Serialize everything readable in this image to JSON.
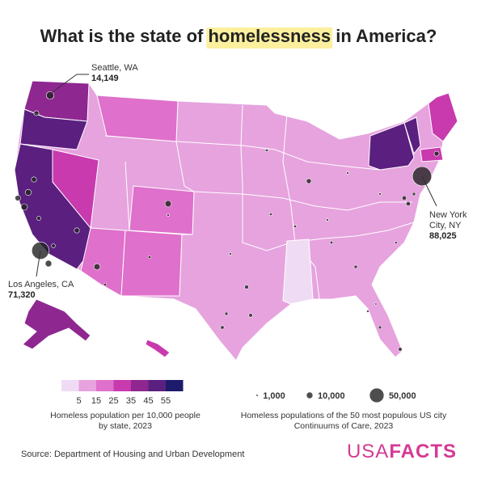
{
  "title": {
    "before": "What is the state of ",
    "highlight": "homelessness",
    "after": " in America?"
  },
  "legend_color": {
    "colors": [
      "#efdcf4",
      "#e6a3de",
      "#df70cb",
      "#c83aae",
      "#8f2790",
      "#5b1f80",
      "#1d1b6b"
    ],
    "ticks": [
      5,
      15,
      25,
      35,
      45,
      55
    ],
    "caption": "Homeless population per 10,000 people by state, 2023"
  },
  "legend_size": {
    "items": [
      {
        "value": 1000,
        "label": "1,000"
      },
      {
        "value": 10000,
        "label": "10,000"
      },
      {
        "value": 50000,
        "label": "50,000"
      }
    ],
    "caption": "Homeless populations of the 50 most populous US city Continuums of Care, 2023"
  },
  "callouts": [
    {
      "name": "Seattle, WA",
      "value": 14149,
      "label": "14,149"
    },
    {
      "name": "Los Angeles, CA",
      "value": 71320,
      "label": "71,320"
    },
    {
      "name": "New York City, NY",
      "value": 88025,
      "label": "88,025"
    }
  ],
  "other_bubbles": [
    6000,
    7500,
    9000,
    10000,
    6500,
    4000,
    10000,
    3700,
    6500,
    9600,
    2000,
    10000,
    1500,
    2000,
    1500,
    4000,
    3300,
    2500,
    3100,
    1800,
    1700,
    1800,
    6000,
    1300,
    1500,
    1500,
    2000,
    2700,
    1600,
    4700,
    4900,
    2500,
    6000,
    2200,
    3300,
    1500,
    1000
  ],
  "source": "Source: Department of Housing and Urban Development",
  "logo": {
    "light": "USA",
    "bold": "FACTS"
  }
}
